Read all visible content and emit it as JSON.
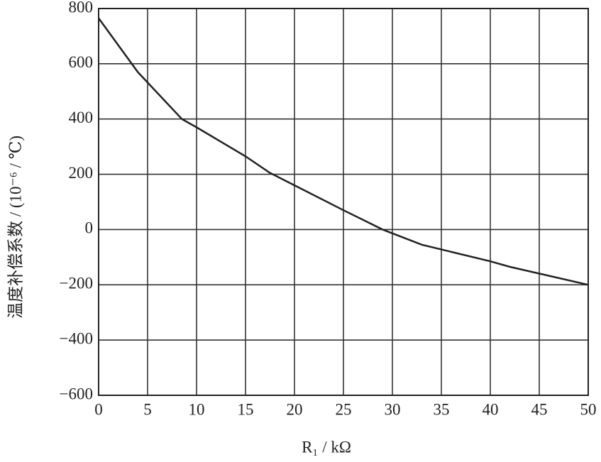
{
  "chart_data": {
    "type": "line",
    "x_label": "R₁ / kΩ",
    "y_label": "温度补偿系数 / (10⁻⁶ / ℃)",
    "x": [
      0,
      4,
      8.5,
      10,
      15,
      17.5,
      20,
      25,
      29,
      33,
      40,
      42,
      50
    ],
    "series": [
      {
        "color": "#222222",
        "values": [
          765,
          570,
          400,
          370,
          265,
          205,
          160,
          70,
          0,
          -55,
          -115,
          -135,
          -200
        ]
      }
    ],
    "xlim": [
      0,
      50
    ],
    "xticks": [
      0,
      5,
      10,
      15,
      20,
      25,
      30,
      35,
      40,
      45,
      50
    ],
    "ylim": [
      -600,
      800
    ],
    "yticks": [
      {
        "value": -600,
        "label": "−600"
      },
      {
        "value": -400,
        "label": "−400"
      },
      {
        "value": -200,
        "label": "−200"
      },
      0,
      200,
      400,
      600,
      800
    ],
    "grid": true
  }
}
